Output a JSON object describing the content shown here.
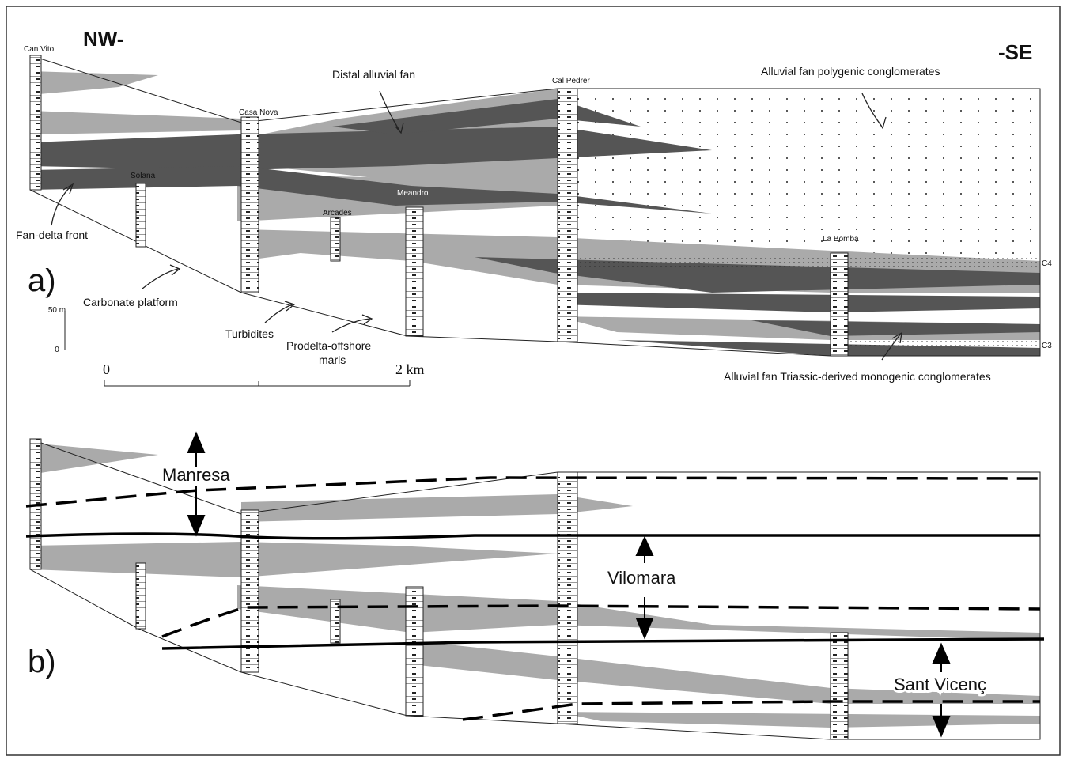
{
  "panel_a": {
    "label": "a)",
    "orientation": {
      "left": "NW-",
      "right": "-SE"
    },
    "sections": [
      "Can Vito",
      "Casa Nova",
      "Solana",
      "Arcades",
      "Meandro",
      "Cal Pedrer",
      "La Bomba"
    ],
    "annotations": {
      "distal": "Distal alluvial fan",
      "polygenic": "Alluvial fan polygenic conglomerates",
      "fan_delta": "Fan-delta front",
      "carbonate": "Carbonate platform",
      "turbidites": "Turbidites",
      "prodelta": [
        "Prodelta-offshore",
        "marls"
      ],
      "triassic": "Alluvial fan Triassic-derived monogenic conglomerates"
    },
    "markers": [
      "C4",
      "C3"
    ],
    "vertical_scale": {
      "top": "50 m",
      "bottom": "0"
    },
    "horizontal_scale": {
      "start": "0",
      "end": "2 km"
    }
  },
  "panel_b": {
    "label": "b)",
    "units": [
      "Manresa",
      "Vilomara",
      "Sant Vicenç"
    ]
  }
}
